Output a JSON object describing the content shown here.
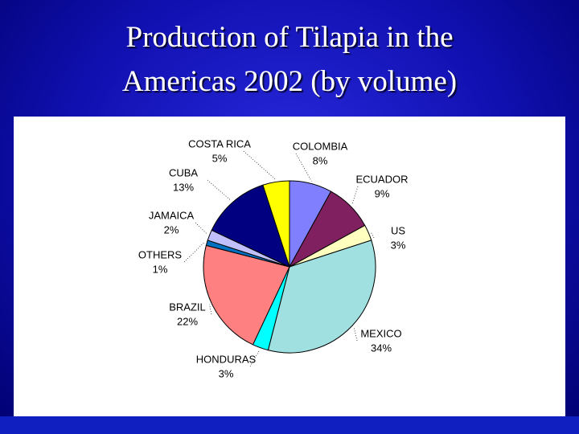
{
  "chart_data": {
    "type": "pie",
    "title": [
      "Production of Tilapia in the",
      "Americas 2002 (by volume)"
    ],
    "categories": [
      "COLOMBIA",
      "ECUADOR",
      "US",
      "MEXICO",
      "HONDURAS",
      "BRAZIL",
      "OTHERS",
      "JAMAICA",
      "CUBA",
      "COSTA RICA"
    ],
    "values": [
      8,
      9,
      3,
      34,
      3,
      22,
      1,
      2,
      13,
      5
    ],
    "value_labels": [
      "8%",
      "9%",
      "3%",
      "34%",
      "3%",
      "22%",
      "1%",
      "2%",
      "13%",
      "5%"
    ],
    "colors": [
      "#8080ff",
      "#802060",
      "#ffffc0",
      "#a0e0e0",
      "#00ffff",
      "#ff8080",
      "#0070c0",
      "#c0c0ff",
      "#000080",
      "#ffff00"
    ]
  }
}
